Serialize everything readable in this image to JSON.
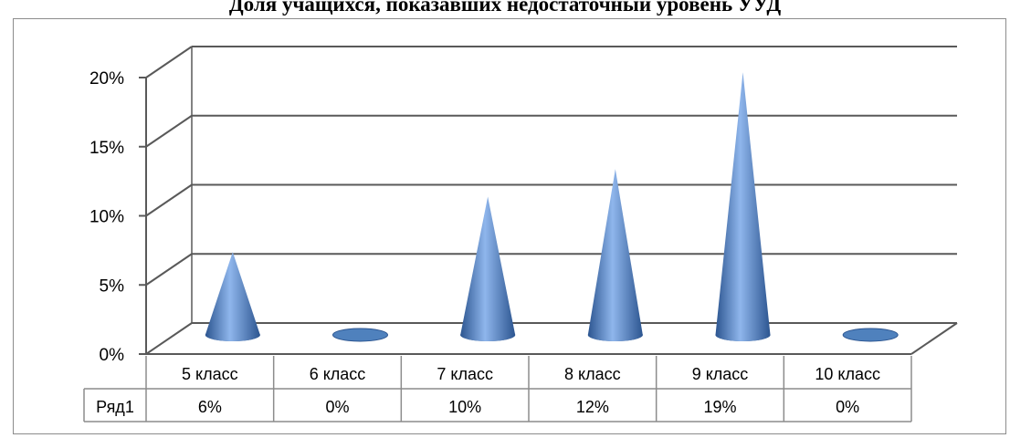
{
  "chart_data": {
    "type": "bar",
    "title": "Доля учащихся, показавших недостаточный уровень УУД",
    "categories": [
      "5 класс",
      "6 класс",
      "7 класс",
      "8 класс",
      "9 класс",
      "10 класс"
    ],
    "series": [
      {
        "name": "Ряд1",
        "values": [
          0.06,
          0,
          0.1,
          0.12,
          0.19,
          0
        ]
      }
    ],
    "data_labels": [
      "6%",
      "0%",
      "10%",
      "12%",
      "19%",
      "0%"
    ],
    "ylim": [
      0,
      0.2
    ],
    "yticks": [
      0,
      0.05,
      0.1,
      0.15,
      0.2
    ],
    "ytick_labels": [
      "0%",
      "5%",
      "10%",
      "15%",
      "20%"
    ],
    "shape": "cone",
    "grid": true,
    "data_table": true,
    "colors": {
      "cone_light": "#8fb6ec",
      "cone_mid": "#4f81bd",
      "cone_dark": "#2c5590",
      "grid": "#595959"
    }
  }
}
